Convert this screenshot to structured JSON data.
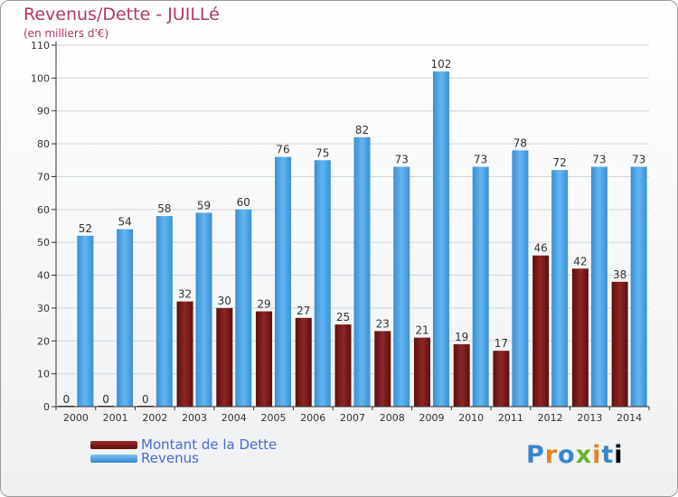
{
  "header": {
    "title": "Revenus/Dette - JUILLé",
    "subtitle": "(en milliers d'€)"
  },
  "logo": {
    "text": "Proxiti"
  },
  "colors": {
    "debt": "#7a1c1c",
    "revenue": "#4aa3e6",
    "axis": "#333333",
    "grid": "#cfd6dc"
  },
  "chart_data": {
    "type": "bar",
    "categories": [
      "2000",
      "2001",
      "2002",
      "2003",
      "2004",
      "2005",
      "2006",
      "2007",
      "2008",
      "2009",
      "2010",
      "2011",
      "2012",
      "2013",
      "2014"
    ],
    "series": [
      {
        "name": "Montant de la Dette",
        "values": [
          0,
          0,
          0,
          32,
          30,
          29,
          27,
          25,
          23,
          21,
          19,
          17,
          46,
          42,
          38
        ]
      },
      {
        "name": "Revenus",
        "values": [
          52,
          54,
          58,
          59,
          60,
          76,
          75,
          82,
          73,
          102,
          73,
          78,
          72,
          73,
          73
        ]
      }
    ],
    "title": "Revenus/Dette - JUILLé",
    "subtitle": "(en milliers d'€)",
    "ylim": [
      0,
      110
    ],
    "yticks": [
      0,
      10,
      20,
      30,
      40,
      50,
      60,
      70,
      80,
      90,
      100,
      110
    ],
    "grid": true,
    "legend": "bottom-left"
  }
}
